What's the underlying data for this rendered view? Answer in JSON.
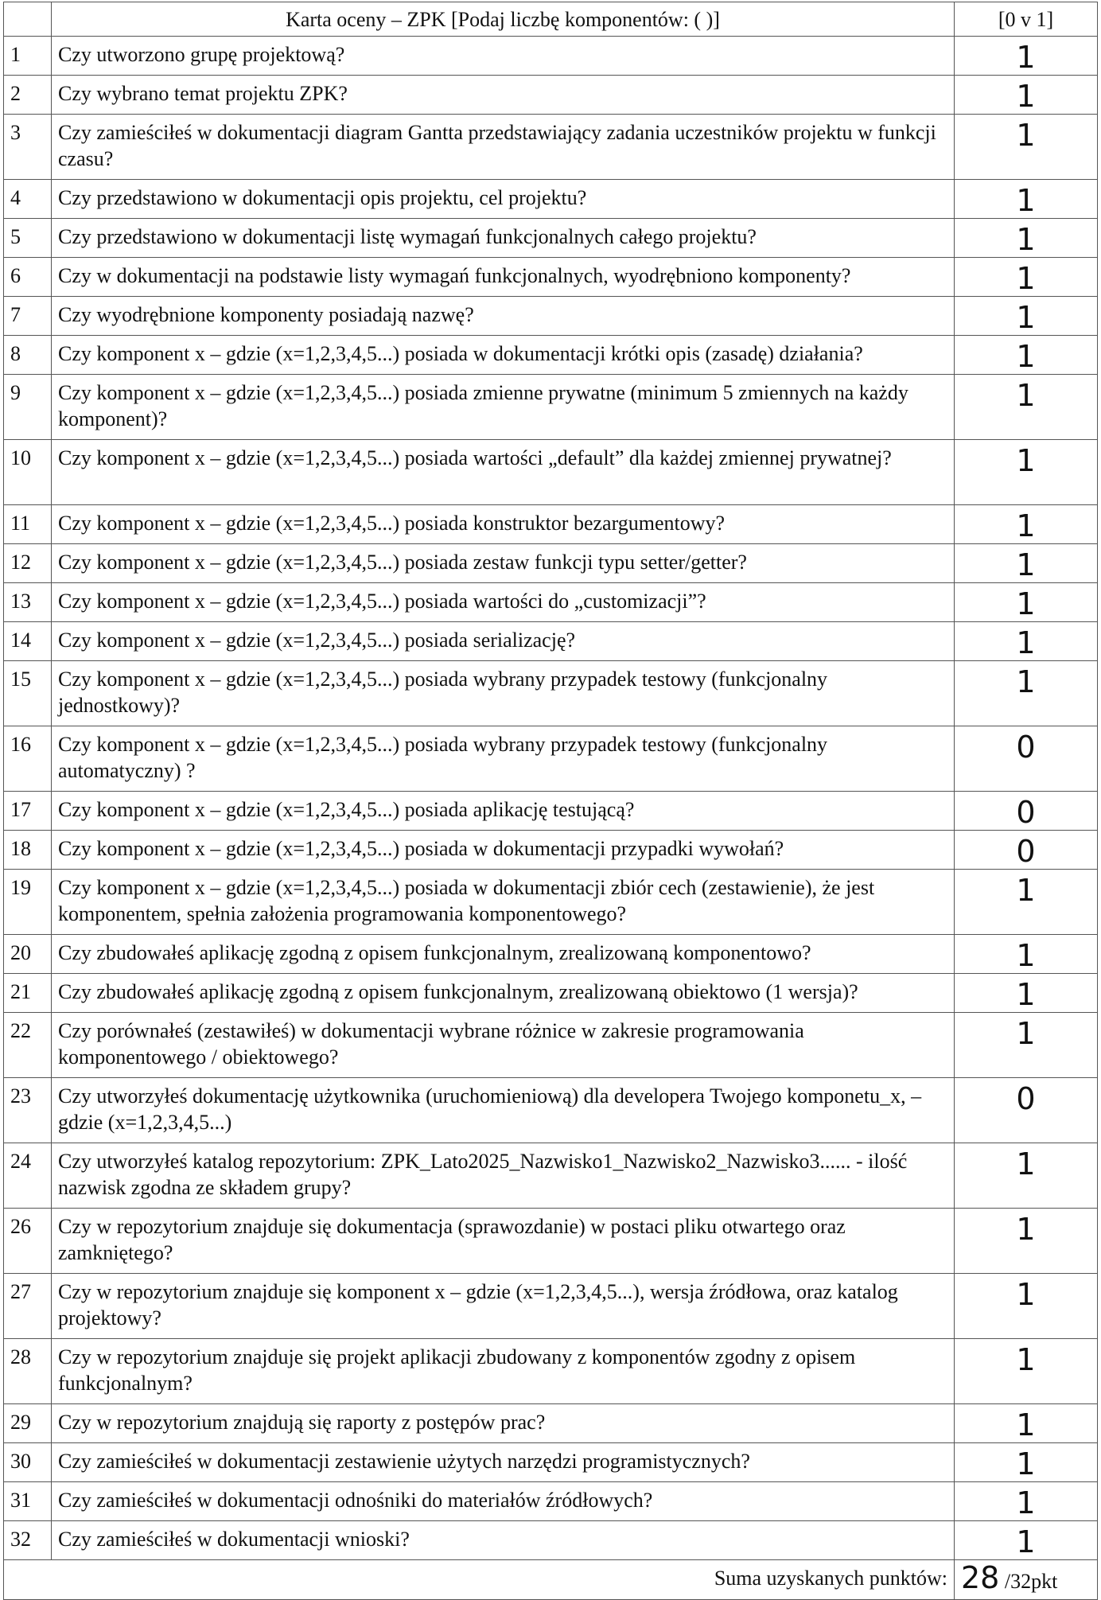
{
  "header": {
    "title": "Karta oceny – ZPK [Podaj liczbę komponentów: (     )]",
    "scale": "[0 v 1]"
  },
  "rows": [
    {
      "num": "1",
      "question": "Czy utworzono grupę projektową?",
      "score": "1"
    },
    {
      "num": "2",
      "question": "Czy wybrano temat projektu ZPK?",
      "score": "1"
    },
    {
      "num": "3",
      "question": "Czy zamieściłeś w dokumentacji diagram Gantta przedstawiający zadania uczestników projektu w funkcji czasu?",
      "score": "1"
    },
    {
      "num": "4",
      "question": "Czy przedstawiono w dokumentacji  opis projektu, cel projektu?",
      "score": "1"
    },
    {
      "num": "5",
      "question": "Czy przedstawiono w dokumentacji listę wymagań funkcjonalnych całego projektu?",
      "score": "1"
    },
    {
      "num": "6",
      "question": "Czy w dokumentacji na podstawie listy wymagań funkcjonalnych, wyodrębniono komponenty?",
      "score": "1"
    },
    {
      "num": "7",
      "question": "Czy wyodrębnione komponenty posiadają nazwę?",
      "score": "1"
    },
    {
      "num": "8",
      "question": "Czy komponent x – gdzie (x=1,2,3,4,5...) posiada w dokumentacji krótki opis (zasadę) działania?",
      "score": "1"
    },
    {
      "num": "9",
      "question": "Czy komponent x – gdzie (x=1,2,3,4,5...) posiada zmienne prywatne (minimum 5 zmiennych na każdy komponent)?",
      "score": "1"
    },
    {
      "num": "10",
      "question": "Czy komponent x – gdzie (x=1,2,3,4,5...) posiada wartości „default” dla każdej zmiennej prywatnej?",
      "score": "1"
    },
    {
      "num": "11",
      "question": "Czy komponent x – gdzie (x=1,2,3,4,5...) posiada konstruktor bezargumentowy?",
      "score": "1"
    },
    {
      "num": "12",
      "question": "Czy komponent x – gdzie (x=1,2,3,4,5...) posiada zestaw funkcji typu setter/getter?",
      "score": "1"
    },
    {
      "num": "13",
      "question": "Czy komponent x – gdzie (x=1,2,3,4,5...) posiada wartości do „customizacji”?",
      "score": "1"
    },
    {
      "num": "14",
      "question": "Czy komponent x – gdzie (x=1,2,3,4,5...) posiada serializację?",
      "score": "1"
    },
    {
      "num": "15",
      "question": "Czy komponent x – gdzie (x=1,2,3,4,5...) posiada wybrany przypadek testowy (funkcjonalny jednostkowy)?",
      "score": "1"
    },
    {
      "num": "16",
      "question": "Czy komponent x – gdzie (x=1,2,3,4,5...) posiada wybrany przypadek testowy (funkcjonalny automatyczny) ?",
      "score": "0"
    },
    {
      "num": "17",
      "question": "Czy komponent x – gdzie (x=1,2,3,4,5...) posiada aplikację testującą?",
      "score": "0"
    },
    {
      "num": "18",
      "question": "Czy komponent x – gdzie (x=1,2,3,4,5...) posiada w dokumentacji przypadki wywołań?",
      "score": "0"
    },
    {
      "num": "19",
      "question": "Czy komponent x – gdzie (x=1,2,3,4,5...) posiada w dokumentacji zbiór cech (zestawienie), że jest komponentem, spełnia założenia programowania komponentowego?",
      "score": "1"
    },
    {
      "num": "20",
      "question": "Czy zbudowałeś aplikację zgodną z opisem funkcjonalnym, zrealizowaną komponentowo?",
      "score": "1"
    },
    {
      "num": "21",
      "question": "Czy zbudowałeś aplikację zgodną z opisem funkcjonalnym, zrealizowaną obiektowo (1 wersja)?",
      "score": "1"
    },
    {
      "num": "22",
      "question": "Czy porównałeś (zestawiłeś) w dokumentacji wybrane różnice w zakresie programowania komponentowego / obiektowego?",
      "score": "1"
    },
    {
      "num": "23",
      "question": "Czy utworzyłeś dokumentację użytkownika (uruchomieniową) dla developera Twojego komponetu_x, – gdzie (x=1,2,3,4,5...)",
      "score": "0"
    },
    {
      "num": "24",
      "question": "Czy utworzyłeś katalog repozytorium: ZPK_Lato2025_Nazwisko1_Nazwisko2_Nazwisko3...... - ilość nazwisk zgodna ze składem grupy?",
      "score": "1"
    },
    {
      "num": "26",
      "question": "Czy w repozytorium znajduje się dokumentacja (sprawozdanie) w postaci pliku otwartego oraz zamkniętego?",
      "score": "1"
    },
    {
      "num": "27",
      "question": "Czy w repozytorium znajduje się komponent x – gdzie (x=1,2,3,4,5...), wersja źródłowa, oraz katalog projektowy?",
      "score": "1"
    },
    {
      "num": "28",
      "question": "Czy w repozytorium znajduje się projekt aplikacji zbudowany z komponentów zgodny z opisem funkcjonalnym?",
      "score": "1"
    },
    {
      "num": "29",
      "question": "Czy w repozytorium znajdują się raporty z postępów prac?",
      "score": "1"
    },
    {
      "num": "30",
      "question": "Czy zamieściłeś w dokumentacji zestawienie użytych narzędzi programistycznych?",
      "score": "1"
    },
    {
      "num": "31",
      "question": "Czy  zamieściłeś w dokumentacji odnośniki do materiałów źródłowych?",
      "score": "1"
    },
    {
      "num": "32",
      "question": "Czy zamieściłeś w dokumentacji wnioski?",
      "score": "1"
    }
  ],
  "summary": {
    "label": "Suma uzyskanych punktów:",
    "score": "28",
    "max": "/32pkt"
  }
}
